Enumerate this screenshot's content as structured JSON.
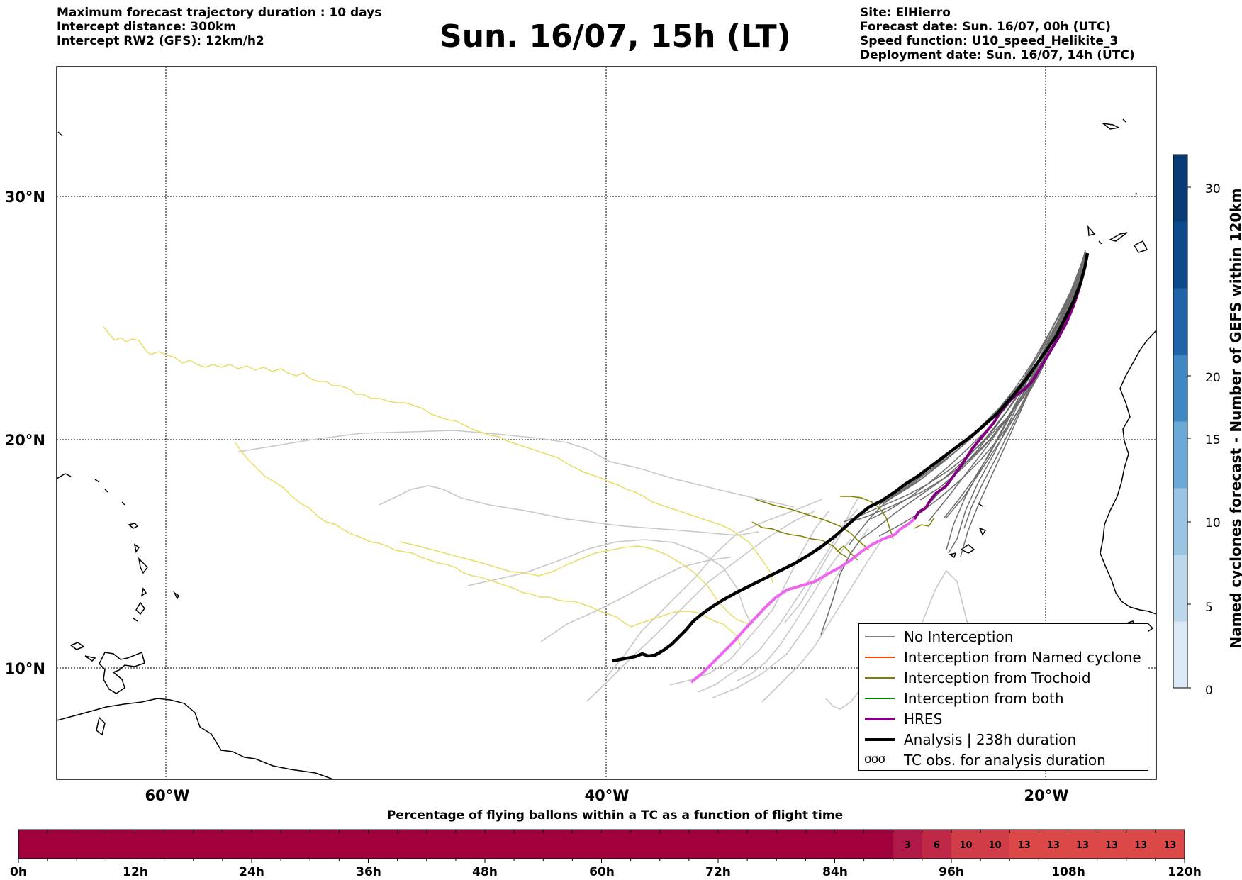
{
  "header": {
    "left": [
      "Maximum forecast trajectory duration : 10 days",
      "Intercept distance: 300km",
      "Intercept RW2 (GFS):  12km/h2"
    ],
    "title": "Sun. 16/07, 15h (LT)",
    "right": [
      "Site: ElHierro",
      "Forecast date: Sun. 16/07, 00h (UTC)",
      "Speed function: U10_speed_Helikite_3",
      "Deployment date: Sun. 16/07, 14h (UTC)"
    ]
  },
  "map": {
    "lat_labels": [
      "30°N",
      "20°N",
      "10°N"
    ],
    "lon_labels": [
      "60°W",
      "40°W",
      "20°W"
    ],
    "colors": {
      "no_interception": "#7a7a7a",
      "gefs_light": "#c8c8c8",
      "trochoid": "#808000",
      "trochoid_light": "#e8e070",
      "hres": "#800080",
      "hres_light": "#ee66ee",
      "analysis": "#000000"
    }
  },
  "legend": {
    "items": [
      {
        "label": "No Interception",
        "color": "#808080"
      },
      {
        "label": "Interception from Named cyclone",
        "color": "#ff4500"
      },
      {
        "label": "Interception from Trochoid",
        "color": "#808000"
      },
      {
        "label": "Interception from both",
        "color": "#008000"
      },
      {
        "label": "HRES",
        "color": "#800080"
      },
      {
        "label": "Analysis | 238h duration",
        "color": "#000000"
      },
      {
        "label": "TC obs. for analysis duration",
        "symbol": "σσσ"
      }
    ]
  },
  "colorbar": {
    "title": "Named cyclones forecast - Number of GEFS within 120km",
    "ticks": [
      "0",
      "5",
      "10",
      "15",
      "20",
      "30"
    ],
    "colors": [
      "#dbe8f5",
      "#bcd6ec",
      "#9ac4e2",
      "#6aa9d6",
      "#3f87c2",
      "#1f64a8",
      "#0c4a8c",
      "#083a73"
    ]
  },
  "percentage_bar": {
    "title": "Percentage of flying ballons within a TC as a function of flight time",
    "x_labels": [
      "0h",
      "12h",
      "24h",
      "36h",
      "48h",
      "60h",
      "72h",
      "84h",
      "96h",
      "108h",
      "120h"
    ],
    "values": [
      0,
      0,
      0,
      0,
      0,
      0,
      0,
      0,
      0,
      0,
      0,
      0,
      0,
      0,
      0,
      0,
      0,
      0,
      0,
      0,
      0,
      0,
      0,
      0,
      0,
      0,
      0,
      0,
      0,
      0,
      3,
      6,
      10,
      10,
      13,
      13,
      13,
      13,
      13,
      13
    ],
    "cells": [
      {
        "label": "3",
        "color": "#b01848"
      },
      {
        "label": "6",
        "color": "#c02848"
      },
      {
        "label": "10",
        "color": "#d03c48"
      },
      {
        "label": "10",
        "color": "#d03c48"
      },
      {
        "label": "13",
        "color": "#dc4848"
      },
      {
        "label": "13",
        "color": "#dc4848"
      },
      {
        "label": "13",
        "color": "#dc4848"
      },
      {
        "label": "13",
        "color": "#dc4848"
      },
      {
        "label": "13",
        "color": "#dc4848"
      },
      {
        "label": "13",
        "color": "#dc4848"
      }
    ],
    "base_color": "#a0003c"
  }
}
